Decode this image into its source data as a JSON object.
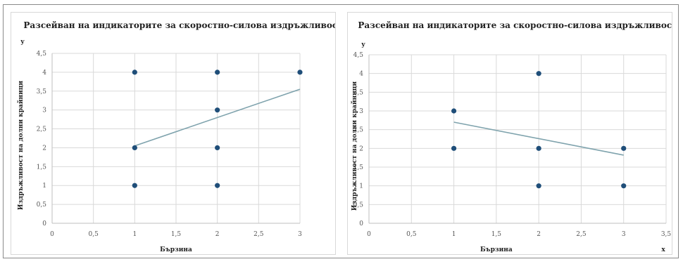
{
  "chart_data": [
    {
      "type": "scatter",
      "title": "Разсейван на индикаторите за скоростно-силова издръжливост",
      "xlabel": "Бързина",
      "ylabel": "Издръжливост на долни крайници",
      "y_axis_letter": "y",
      "x_axis_letter": "",
      "xlim": [
        0,
        3
      ],
      "ylim": [
        0,
        4.5
      ],
      "x_ticks": [
        "0",
        "0,5",
        "1",
        "1,5",
        "2",
        "2,5",
        "3"
      ],
      "y_ticks": [
        "0",
        "0,5",
        "1",
        "1,5",
        "2",
        "2,5",
        "3",
        "3,5",
        "4",
        "4,5"
      ],
      "grid": true,
      "points": [
        {
          "x": 1,
          "y": 4
        },
        {
          "x": 1,
          "y": 2
        },
        {
          "x": 1,
          "y": 1
        },
        {
          "x": 2,
          "y": 4
        },
        {
          "x": 2,
          "y": 3
        },
        {
          "x": 2,
          "y": 2
        },
        {
          "x": 2,
          "y": 1
        },
        {
          "x": 3,
          "y": 4
        }
      ],
      "trendline": {
        "x": [
          1,
          3
        ],
        "y": [
          2.05,
          3.55
        ]
      },
      "colors": {
        "points": "#1f4e79",
        "trendline": "#7fa3ad"
      }
    },
    {
      "type": "scatter",
      "title": "Разсейван на индикаторите за скоростно-силова издръжливост",
      "xlabel": "Бързина",
      "ylabel": "Издръжливост на долни крайници",
      "y_axis_letter": "y",
      "x_axis_letter": "x",
      "xlim": [
        0,
        3.5
      ],
      "ylim": [
        0,
        4.5
      ],
      "x_ticks": [
        "0",
        "0,5",
        "1",
        "1,5",
        "2",
        "2,5",
        "3",
        "3,5"
      ],
      "y_ticks": [
        "0",
        "0,5",
        "1",
        "1,5",
        "2",
        "2,5",
        "3",
        "3,5",
        "4",
        "4,5"
      ],
      "grid": true,
      "points": [
        {
          "x": 1,
          "y": 3
        },
        {
          "x": 1,
          "y": 2
        },
        {
          "x": 2,
          "y": 4
        },
        {
          "x": 2,
          "y": 2
        },
        {
          "x": 2,
          "y": 1
        },
        {
          "x": 3,
          "y": 2
        },
        {
          "x": 3,
          "y": 1
        }
      ],
      "trendline": {
        "x": [
          1,
          3
        ],
        "y": [
          2.7,
          1.82
        ]
      },
      "colors": {
        "points": "#1f4e79",
        "trendline": "#7fa3ad"
      }
    }
  ]
}
